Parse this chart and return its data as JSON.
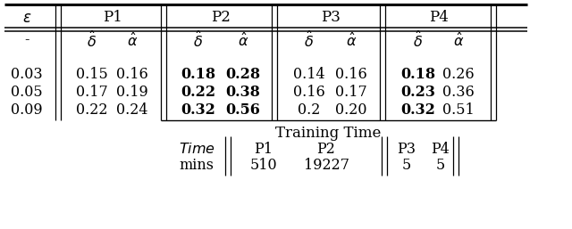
{
  "epsilon_vals": [
    "-",
    "0.03",
    "0.05",
    "0.09"
  ],
  "p1_delta": [
    "0.15",
    "0.17",
    "0.22"
  ],
  "p1_alpha": [
    "0.16",
    "0.19",
    "0.24"
  ],
  "p2_delta": [
    "0.18",
    "0.22",
    "0.32"
  ],
  "p2_alpha": [
    "0.28",
    "0.38",
    "0.56"
  ],
  "p3_delta": [
    "0.14",
    "0.16",
    "0.2"
  ],
  "p3_alpha": [
    "0.16",
    "0.17",
    "0.20"
  ],
  "p4_delta": [
    "0.18",
    "0.23",
    "0.32"
  ],
  "p4_alpha": [
    "0.26",
    "0.36",
    "0.51"
  ],
  "training_time_label": "Training Time",
  "time_label": "Time",
  "mins_label": "mins",
  "time_p1": "510",
  "time_p2": "19227",
  "time_p3": "5",
  "time_p4": "5",
  "fs_main": 11.5,
  "fs_header": 12.0,
  "bg_color": "#ffffff"
}
